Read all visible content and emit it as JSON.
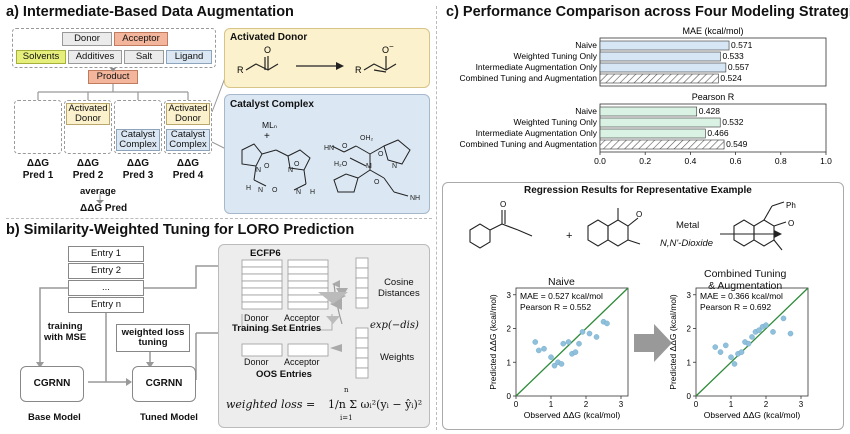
{
  "panel_a": {
    "title": "a) Intermediate-Based Data Augmentation",
    "reaction_components": [
      "Donor",
      "Acceptor",
      "Solvents",
      "Additives",
      "Salt",
      "Ligand"
    ],
    "product": "Product",
    "activated_donor_box": "Activated\nDonor",
    "catalyst_complex_box": "Catalyst\nComplex",
    "preds": [
      "ΔΔG\nPred 1",
      "ΔΔG\nPred 2",
      "ΔΔG\nPred 3",
      "ΔΔG\nPred 4"
    ],
    "average_label": "average",
    "average_pred": "ΔΔG Pred",
    "activated_donor_title": "Activated Donor",
    "catalyst_complex_title": "Catalyst Complex",
    "ml_label": "MLₙ",
    "plus": "+"
  },
  "panel_b": {
    "title": "b) Similarity-Weighted Tuning for LORO Prediction",
    "entries": [
      "Entry 1",
      "Entry 2",
      "...",
      "Entry n"
    ],
    "training_label": "training\nwith MSE",
    "base_model_box": "CGRNN",
    "base_model_label": "Base Model",
    "weighted_loss_label": "weighted loss\ntuning",
    "tuned_model_box": "CGRNN",
    "tuned_model_label": "Tuned Model",
    "ecfp_label": "ECFP6",
    "donor": "Donor",
    "acceptor": "Acceptor",
    "training_set_entries": "Training Set Entries",
    "oos_entries": "OOS Entries",
    "cosine_distances": "Cosine\nDistances",
    "exp_label": "exp(−dis)",
    "weights_label": "Weights",
    "formula_lhs": "weighted loss =",
    "formula_rhs": "1/n Σ ωᵢ²(yᵢ − ŷᵢ)²",
    "sum_top": "n",
    "sum_bottom": "i=1"
  },
  "panel_c": {
    "title": "c) Performance Comparison across Four Modeling Strategies",
    "regression_title": "Regression Results for Representative Example",
    "reaction_conditions": [
      "Metal",
      "N,N'-Dioxide"
    ],
    "product_group": "Ph",
    "plus": "+",
    "plot_titles": [
      "Naive",
      "Combined Tuning\n& Augmentation"
    ],
    "arrow_note": ""
  },
  "chart_data": [
    {
      "type": "bar",
      "title": "MAE (kcal/mol)",
      "categories": [
        "Naive",
        "Weighted Tuning Only",
        "Intermediate Augmentation Only",
        "Combined Tuning and Augmentation"
      ],
      "values": [
        0.571,
        0.533,
        0.557,
        0.524
      ],
      "value_labels": [
        "0.571",
        "0.533",
        "0.557",
        "0.524"
      ],
      "xlim": [
        0.0,
        1.0
      ],
      "xticks": [
        "0.0",
        "0.2",
        "0.4",
        "0.6",
        "0.8",
        "1.0"
      ],
      "colors": [
        "#d6e6f5",
        "#d6e6f5",
        "#d6e6f5",
        "hatched"
      ]
    },
    {
      "type": "bar",
      "title": "Pearson R",
      "categories": [
        "Naive",
        "Weighted Tuning Only",
        "Intermediate Augmentation Only",
        "Combined Tuning and Augmentation"
      ],
      "values": [
        0.428,
        0.532,
        0.466,
        0.549
      ],
      "value_labels": [
        "0.428",
        "0.532",
        "0.466",
        "0.549"
      ],
      "xlim": [
        0.0,
        1.0
      ],
      "xticks": [
        "0.0",
        "0.2",
        "0.4",
        "0.6",
        "0.8",
        "1.0"
      ],
      "colors": [
        "#d9f2e4",
        "#d9f2e4",
        "#d9f2e4",
        "hatched"
      ]
    },
    {
      "type": "scatter",
      "title": "Naive",
      "annotation": [
        "MAE = 0.527 kcal/mol",
        "Pearson R = 0.552"
      ],
      "xlabel": "Observed ΔΔG (kcal/mol)",
      "ylabel": "Predicted ΔΔG (kcal/mol)",
      "xlim": [
        0,
        3.2
      ],
      "ylim": [
        0,
        3.2
      ],
      "xticks": [
        "0",
        "1",
        "2",
        "3"
      ],
      "yticks": [
        "0",
        "1",
        "2",
        "3"
      ],
      "x": [
        0.55,
        0.65,
        0.8,
        1.0,
        1.1,
        1.2,
        1.3,
        1.35,
        1.5,
        1.6,
        1.7,
        1.8,
        1.9,
        2.1,
        2.3,
        2.5,
        2.6
      ],
      "y": [
        1.6,
        1.35,
        1.4,
        1.15,
        0.9,
        1.0,
        0.95,
        1.55,
        1.6,
        1.25,
        1.3,
        1.55,
        1.9,
        1.85,
        1.75,
        2.2,
        2.15
      ],
      "color": "#8fc0dc",
      "fit_line": "y=x"
    },
    {
      "type": "scatter",
      "title": "Combined Tuning\n& Augmentation",
      "annotation": [
        "MAE = 0.366 kcal/mol",
        "Pearson R = 0.692"
      ],
      "xlabel": "Observed ΔΔG (kcal/mol)",
      "ylabel": "Predicted ΔΔG (kcal/mol)",
      "xlim": [
        0,
        3.2
      ],
      "ylim": [
        0,
        3.2
      ],
      "xticks": [
        "0",
        "1",
        "2",
        "3"
      ],
      "yticks": [
        "0",
        "1",
        "2",
        "3"
      ],
      "x": [
        0.55,
        0.7,
        0.85,
        1.0,
        1.1,
        1.2,
        1.3,
        1.4,
        1.5,
        1.6,
        1.7,
        1.8,
        1.9,
        2.0,
        2.2,
        2.5,
        2.7
      ],
      "y": [
        1.45,
        1.3,
        1.5,
        1.15,
        0.95,
        1.25,
        1.3,
        1.6,
        1.55,
        1.75,
        1.9,
        1.95,
        2.05,
        2.1,
        1.9,
        2.3,
        1.85
      ],
      "color": "#8fc0dc",
      "fit_line": "y=x"
    }
  ]
}
